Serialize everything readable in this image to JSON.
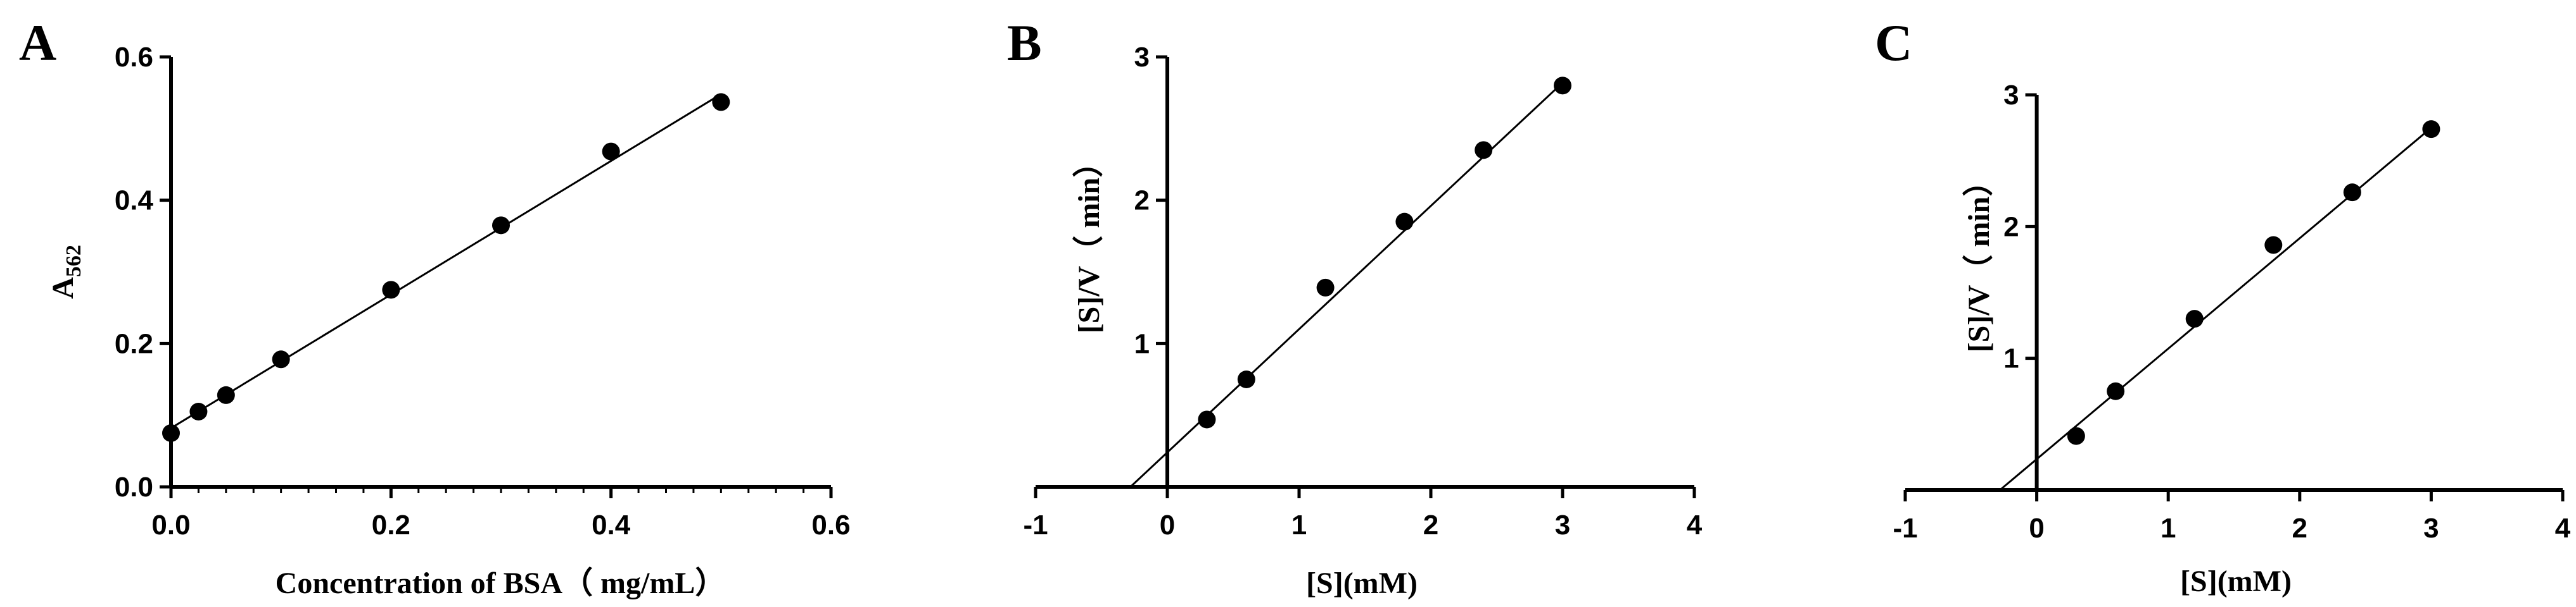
{
  "chart_data": [
    {
      "panel": "A",
      "type": "scatter",
      "xlabel": "Concentration of BSA（ mg/mL）",
      "ylabel": "A",
      "ylabel_sub": "562",
      "xlim": [
        0,
        0.6
      ],
      "ylim": [
        0,
        0.6
      ],
      "xticks": [
        "0.0",
        "0.2",
        "0.4",
        "0.6"
      ],
      "yticks": [
        "0.0",
        "0.2",
        "0.4",
        "0.6"
      ],
      "x": [
        0,
        0.025,
        0.05,
        0.1,
        0.2,
        0.3,
        0.4,
        0.5
      ],
      "y": [
        0.075,
        0.105,
        0.128,
        0.178,
        0.275,
        0.365,
        0.468,
        0.537
      ],
      "fit": {
        "x": [
          0,
          0.5
        ],
        "y": [
          0.082,
          0.548
        ]
      },
      "grid": false
    },
    {
      "panel": "B",
      "type": "scatter",
      "xlabel": "[S](mM)",
      "ylabel": "[S]/V（ min）",
      "xlim": [
        -1,
        4
      ],
      "ylim": [
        0,
        3
      ],
      "xticks": [
        "-1",
        "0",
        "1",
        "2",
        "3",
        "4"
      ],
      "yticks": [
        "1",
        "2",
        "3"
      ],
      "x": [
        0.3,
        0.6,
        1.2,
        1.8,
        2.4,
        3.0
      ],
      "y": [
        0.47,
        0.75,
        1.39,
        1.85,
        2.35,
        2.8
      ],
      "fit": {
        "x": [
          -0.28,
          3.0
        ],
        "y": [
          0,
          2.82
        ]
      },
      "grid": false
    },
    {
      "panel": "C",
      "type": "scatter",
      "xlabel": "[S](mM)",
      "ylabel": "[S]/V（ min）",
      "xlim": [
        -1,
        4
      ],
      "ylim": [
        0,
        3
      ],
      "xticks": [
        "-1",
        "0",
        "1",
        "2",
        "3",
        "4"
      ],
      "yticks": [
        "1",
        "2",
        "3"
      ],
      "x": [
        0.3,
        0.6,
        1.2,
        1.8,
        2.4,
        3.0
      ],
      "y": [
        0.41,
        0.75,
        1.3,
        1.86,
        2.26,
        2.74
      ],
      "fit": {
        "x": [
          -0.28,
          3.0
        ],
        "y": [
          0,
          2.75
        ]
      },
      "grid": false
    }
  ]
}
